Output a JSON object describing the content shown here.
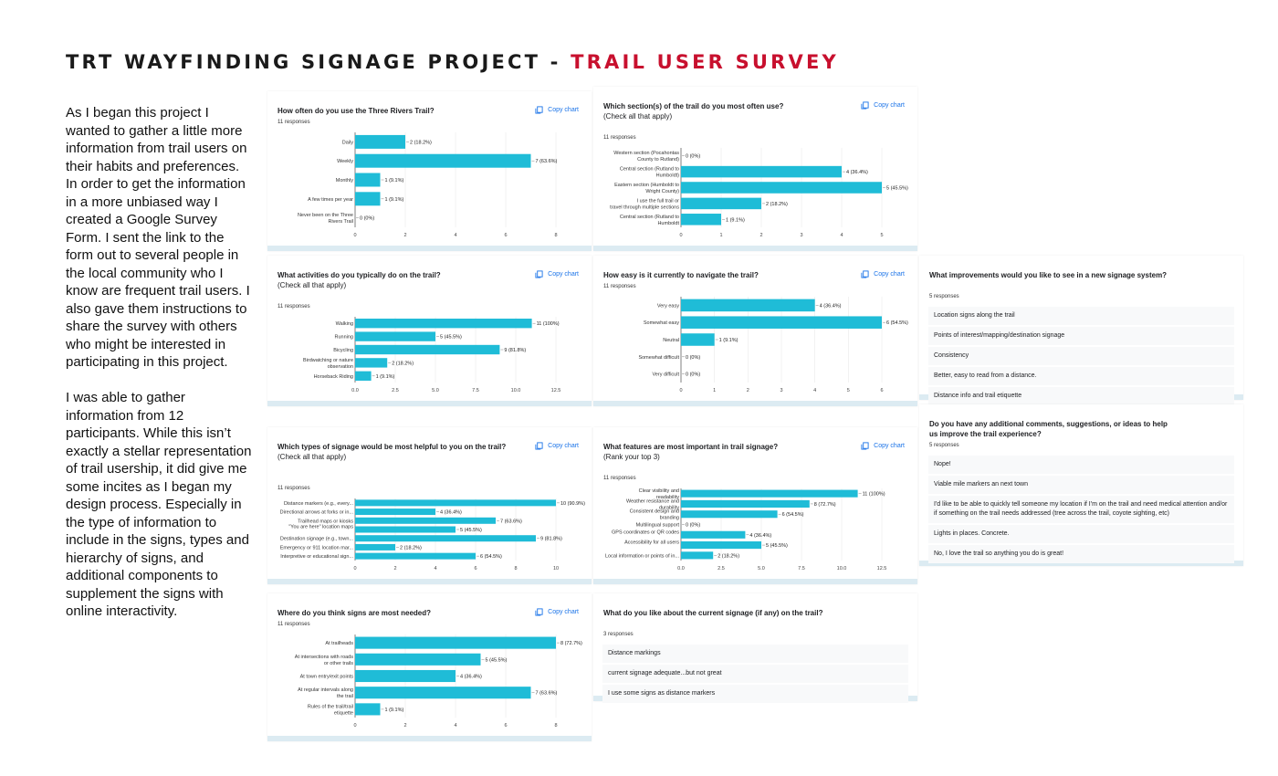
{
  "header": {
    "title": "TRT WAYFINDING SIGNAGE PROJECT - ",
    "title_accent": "TRAIL USER SURVEY"
  },
  "intro": {
    "paragraphs": [
      "As I began this project I wanted to gather a little more information from trail users on their habits and preferences. In order to get the information in a more unbiased way I created a Google Survey Form. I sent the link to the form out to several people in the local community who I know are frequent trail users. I also gave them instructions to share the survey with others who might be interested in participating in this project.",
      "I was able to gather information from 12 participants. While this isn’t exactly a stellar representation of trail usership, it did give me some incites as I began my design process. Especially in the type of information to include in the signs, types and hierarchy of signs, and additional components to supplement the signs with online interactivity."
    ]
  },
  "colors": {
    "bar": "#1fbcd7",
    "accent": "#c8102e",
    "link": "#1a73e8"
  },
  "copy_label": "Copy chart",
  "chart_data": [
    {
      "type": "bar",
      "orientation": "horizontal",
      "title": "How often do you use the Three Rivers Trail?",
      "subtitle": "",
      "responses": "11 responses",
      "categories": [
        "Daily",
        "Weekly",
        "Monthly",
        "A few times per year",
        "Never been on the Three Rivers Trail"
      ],
      "values": [
        2,
        7,
        1,
        1,
        0
      ],
      "labels": [
        "2 (18.2%)",
        "7 (63.6%)",
        "1 (9.1%)",
        "1 (9.1%)",
        "0 (0%)"
      ],
      "xlim": [
        0,
        8
      ],
      "ticks": [
        "0",
        "2",
        "4",
        "6",
        "8"
      ]
    },
    {
      "type": "bar",
      "orientation": "horizontal",
      "title": "Which section(s) of the trail do you most often use?",
      "subtitle": "(Check all that apply)",
      "responses": "11 responses",
      "categories": [
        "Western section (Pocahontas County to Rutland)",
        "Central section (Rutland to Humboldt)",
        "Eastern section (Humboldt to Wright County)",
        "I use the full trail or travel through multiple sections",
        "Central section (Rutland to Humboldt"
      ],
      "values": [
        0,
        4,
        5,
        2,
        1
      ],
      "labels": [
        "0 (0%)",
        "4 (36.4%)",
        "5 (45.5%)",
        "2 (18.2%)",
        "1 (9.1%)"
      ],
      "xlim": [
        0,
        5
      ],
      "ticks": [
        "0",
        "1",
        "2",
        "3",
        "4",
        "5"
      ]
    },
    {
      "type": "bar",
      "orientation": "horizontal",
      "title": "What activities do you typically do on the trail?",
      "subtitle": "(Check all that apply)",
      "responses": "11 responses",
      "categories": [
        "Walking",
        "Running",
        "Bicycling",
        "Birdwatching or nature observation",
        "Horseback Riding"
      ],
      "values": [
        11,
        5,
        9,
        2,
        1
      ],
      "labels": [
        "11 (100%)",
        "5 (45.5%)",
        "9 (81.8%)",
        "2 (18.2%)",
        "1 (9.1%)"
      ],
      "xlim": [
        0,
        12.5
      ],
      "ticks": [
        "0.0",
        "2.5",
        "5.0",
        "7.5",
        "10.0",
        "12.5"
      ]
    },
    {
      "type": "bar",
      "orientation": "horizontal",
      "title": "How easy is it currently to navigate the trail?",
      "subtitle": "",
      "responses": "11 responses",
      "categories": [
        "Very easy",
        "Somewhat easy",
        "Neutral",
        "Somewhat difficult",
        "Very difficult"
      ],
      "values": [
        4,
        6,
        1,
        0,
        0
      ],
      "labels": [
        "4 (36.4%)",
        "6 (54.5%)",
        "1 (9.1%)",
        "0 (0%)",
        "0 (0%)"
      ],
      "xlim": [
        0,
        6
      ],
      "ticks": [
        "0",
        "1",
        "2",
        "3",
        "4",
        "5",
        "6"
      ]
    },
    {
      "type": "bar",
      "orientation": "horizontal",
      "title": "Which types of signage would be most helpful to you on the trail?",
      "subtitle": "(Check all that apply)",
      "responses": "11 responses",
      "categories": [
        "Distance markers (e.g., every...",
        "Directional arrows at forks or in...",
        "Trailhead maps or kiosks",
        "\"You are here\" location maps",
        "Destination signage (e.g., town...",
        "Emergency or 911 location mar...",
        "Interpretive or educational sign..."
      ],
      "values": [
        10,
        4,
        7,
        5,
        9,
        2,
        6
      ],
      "labels": [
        "10 (90.9%)",
        "4 (36.4%)",
        "7 (63.6%)",
        "5 (45.5%)",
        "9 (81.8%)",
        "2 (18.2%)",
        "6 (54.5%)"
      ],
      "xlim": [
        0,
        10
      ],
      "ticks": [
        "0",
        "2",
        "4",
        "6",
        "8",
        "10"
      ]
    },
    {
      "type": "bar",
      "orientation": "horizontal",
      "title": "What features are most important in trail signage?",
      "subtitle": "(Rank your top 3)",
      "responses": "11 responses",
      "categories": [
        "Clear visibility and readability",
        "Weather resistance and durability",
        "Consistent design and branding",
        "Multilingual support",
        "GPS coordinates or QR codes",
        "Accessibility for all users",
        "Local information or points of in..."
      ],
      "values": [
        11,
        8,
        6,
        0,
        4,
        5,
        2
      ],
      "labels": [
        "11 (100%)",
        "8 (72.7%)",
        "6 (54.5%)",
        "0 (0%)",
        "4 (36.4%)",
        "5 (45.5%)",
        "2 (18.2%)"
      ],
      "xlim": [
        0,
        12.5
      ],
      "ticks": [
        "0.0",
        "2.5",
        "5.0",
        "7.5",
        "10.0",
        "12.5"
      ]
    },
    {
      "type": "bar",
      "orientation": "horizontal",
      "title": "Where do you think signs are most needed?",
      "subtitle": "",
      "responses": "11 responses",
      "categories": [
        "At trailheads",
        "At intersections with roads or other trails",
        "At town entry/exit points",
        "At regular intervals along the trail",
        "Rules of the trail/trail etiquette"
      ],
      "values": [
        8,
        5,
        4,
        7,
        1
      ],
      "labels": [
        "8 (72.7%)",
        "5 (45.5%)",
        "4 (36.4%)",
        "7 (63.6%)",
        "1 (9.1%)"
      ],
      "xlim": [
        0,
        8
      ],
      "ticks": [
        "0",
        "2",
        "4",
        "6",
        "8"
      ]
    }
  ],
  "text_cards": [
    {
      "title": "What improvements would you like to see in a new signage system?",
      "responses": "5 responses",
      "answers": [
        "Location signs along the trail",
        "Points of interest/mapping/destination signage",
        "Consistency",
        "Better, easy to read from a distance.",
        "Distance info and trail etiquette"
      ]
    },
    {
      "title": "Do you have any additional comments, suggestions, or ideas to help us improve the trail experience?",
      "responses": "5 responses",
      "answers": [
        "Nope!",
        "Viable mile markers an next town",
        "I'd like to be able to quickly tell someone my location if I'm on the trail and need medical attention and/or if something on the trail needs addressed (tree across the trail, coyote sighting, etc)",
        "Lights in places. Concrete.",
        "No, I love the trail so anything you do is great!"
      ]
    },
    {
      "title": "What do you like about the current signage (if any) on the trail?",
      "responses": "3 responses",
      "answers": [
        "Distance markings",
        "current signage adequate...but not great",
        "I use some signs as distance markers"
      ]
    }
  ]
}
